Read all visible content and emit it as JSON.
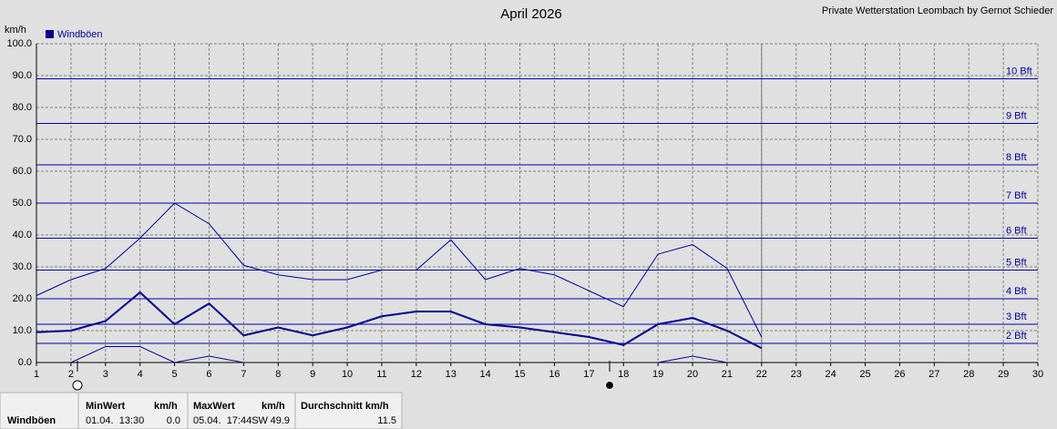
{
  "chart_data": {
    "type": "line",
    "title": "April 2026",
    "subtitle": "Private Wetterstation Leombach by Gernot Schieder",
    "y_label": "km/h",
    "x": [
      1,
      2,
      3,
      4,
      5,
      6,
      7,
      8,
      9,
      10,
      11,
      12,
      13,
      14,
      15,
      16,
      17,
      18,
      19,
      20,
      21,
      22
    ],
    "xlim": [
      1,
      30
    ],
    "xticks": [
      1,
      2,
      3,
      4,
      5,
      6,
      7,
      8,
      9,
      10,
      11,
      12,
      13,
      14,
      15,
      16,
      17,
      18,
      19,
      20,
      21,
      22,
      23,
      24,
      25,
      26,
      27,
      28,
      29,
      30
    ],
    "ylim": [
      0,
      100
    ],
    "yticks": [
      {
        "value": 0,
        "label": "0.0"
      },
      {
        "value": 10,
        "label": "10.0"
      },
      {
        "value": 20,
        "label": "20.0"
      },
      {
        "value": 30,
        "label": "30.0"
      },
      {
        "value": 40,
        "label": "40.0"
      },
      {
        "value": 50,
        "label": "50.0"
      },
      {
        "value": 60,
        "label": "60.0"
      },
      {
        "value": 70,
        "label": "70.0"
      },
      {
        "value": 80,
        "label": "80.0"
      },
      {
        "value": 90,
        "label": "90.0"
      },
      {
        "value": 100,
        "label": "100.0"
      }
    ],
    "grid": true,
    "current_day": 22,
    "series": [
      {
        "name": "Windböen",
        "color": "#000090",
        "values": [
          9.5,
          10,
          13,
          22,
          12,
          18.5,
          8.5,
          11,
          8.5,
          11,
          14.5,
          16,
          16,
          12,
          11,
          9.5,
          8,
          5.5,
          12,
          14,
          10,
          4.5
        ]
      },
      {
        "color": "#0000a0",
        "values": [
          21,
          26,
          29.5,
          39,
          50,
          43.5,
          30.5,
          27.5,
          26,
          26,
          29,
          29,
          38.5,
          26,
          29.5,
          27.5,
          22.5,
          17.5,
          34,
          37,
          29.5,
          8
        ]
      },
      {
        "color": "#0000a0",
        "values": [
          null,
          0,
          5,
          5,
          0,
          2,
          0,
          null,
          null,
          null,
          null,
          null,
          null,
          null,
          null,
          null,
          null,
          null,
          0,
          2,
          0,
          null
        ]
      }
    ],
    "beaufort": [
      {
        "value": 6,
        "label": "2 Bft"
      },
      {
        "value": 12,
        "label": "3 Bft"
      },
      {
        "value": 20,
        "label": "4 Bft"
      },
      {
        "value": 29,
        "label": "5 Bft"
      },
      {
        "value": 39,
        "label": "6 Bft"
      },
      {
        "value": 50,
        "label": "7 Bft"
      },
      {
        "value": 62,
        "label": "8 Bft"
      },
      {
        "value": 75,
        "label": "9 Bft"
      },
      {
        "value": 89,
        "label": "10 Bft"
      }
    ]
  },
  "summary": {
    "row_label": "Windböen",
    "min_header": "MinWert",
    "min_unit": "km/h",
    "min_time": "01.04.  13:30",
    "min_value": "0.0",
    "max_header": "MaxWert",
    "max_unit": "km/h",
    "max_time": "05.04.  17:44SW",
    "max_value": "49.9",
    "avg_header": "Durchschnitt km/h",
    "avg_value": "11.5"
  }
}
